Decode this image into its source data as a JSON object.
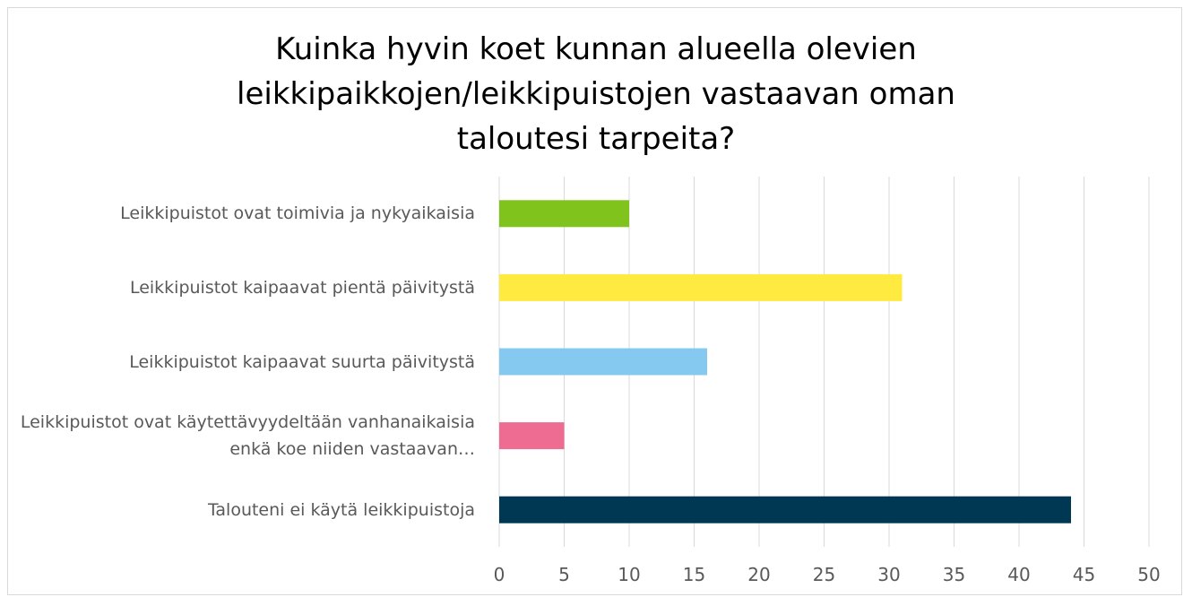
{
  "chart_data": {
    "type": "barh",
    "title": "Kuinka hyvin koet kunnan alueella olevien leikkipaikkojen/leikkipuistojen vastaavan oman taloutesi tarpeita?",
    "categories": [
      "Leikkipuistot ovat toimivia ja nykyaikaisia",
      "Leikkipuistot kaipaavat pientä päivitystä",
      "Leikkipuistot kaipaavat suurta päivitystä",
      "Leikkipuistot ovat käytettävyydeltään vanhanaikaisia enkä koe niiden vastaavan…",
      "Talouteni ei käytä leikkipuistoja"
    ],
    "values": [
      10,
      31,
      16,
      5,
      44
    ],
    "colors": [
      "#7fc31c",
      "#ffea3f",
      "#85c8f0",
      "#ee6b92",
      "#003752"
    ],
    "xlim": [
      0,
      50
    ],
    "xticks": [
      0,
      5,
      10,
      15,
      20,
      25,
      30,
      35,
      40,
      45,
      50
    ],
    "grid": true
  }
}
